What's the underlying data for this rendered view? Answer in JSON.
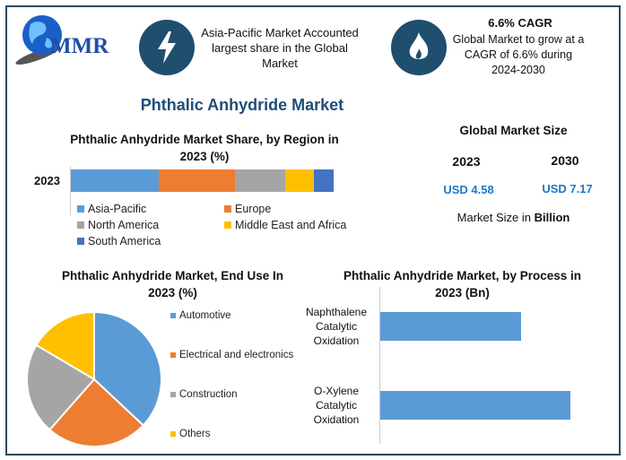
{
  "logo": {
    "text": "MMR"
  },
  "highlights": [
    {
      "icon": "lightning-icon",
      "text": "Asia-Pacific Market Accounted largest share in the Global Market"
    },
    {
      "icon": "flame-icon",
      "title": "6.6% CAGR",
      "text": "Global Market to grow at a CAGR of 6.6% during 2024-2030"
    }
  ],
  "page_title": "Phthalic Anhydride Market",
  "market_size": {
    "title": "Global Market Size",
    "years": [
      "2023",
      "2030"
    ],
    "values": [
      "USD 4.58",
      "USD 7.17"
    ],
    "note_prefix": "Market Size in ",
    "note_bold": "Billion"
  },
  "colors": {
    "blue": "#5b9bd5",
    "orange": "#ed7d31",
    "gray": "#a5a5a5",
    "yellow": "#ffc000",
    "darkblue": "#4472c4",
    "frame": "#2a4a5e",
    "icon_bg": "#1f4e6e"
  },
  "chart_data": [
    {
      "type": "bar",
      "orientation": "horizontal-stacked",
      "title": "Phthalic Anhydride Market Share, by Region in 2023 (%)",
      "categories": [
        "2023"
      ],
      "series": [
        {
          "name": "Asia-Pacific",
          "values": [
            33.5
          ],
          "color": "#5b9bd5"
        },
        {
          "name": "Europe",
          "values": [
            29
          ],
          " color": "#ed7d31"
        },
        {
          "name": "North America",
          "values": [
            19
          ],
          "color": "#a5a5a5"
        },
        {
          "name": "Middle East and Africa",
          "values": [
            11
          ],
          "color": "#ffc000"
        },
        {
          "name": "South America",
          "values": [
            7.5
          ],
          "color": "#4472c4"
        }
      ],
      "legend": "bottom"
    },
    {
      "type": "pie",
      "title": "Phthalic Anhydride Market, End Use In 2023 (%)",
      "labels": [
        "Automotive",
        "Electrical and electronics",
        "Construction",
        "Others"
      ],
      "values": [
        37,
        24.5,
        22,
        16.5
      ],
      "colors": [
        "#5b9bd5",
        "#ed7d31",
        "#a5a5a5",
        "#ffc000"
      ],
      "legend": "right"
    },
    {
      "type": "bar",
      "orientation": "horizontal",
      "title": "Phthalic Anhydride Market, by Process in 2023 (Bn)",
      "categories": [
        "Naphthalene Catalytic Oxidation",
        "O-Xylene Catalytic Oxidation"
      ],
      "values": [
        1.95,
        2.63
      ],
      "color": "#5b9bd5"
    }
  ]
}
